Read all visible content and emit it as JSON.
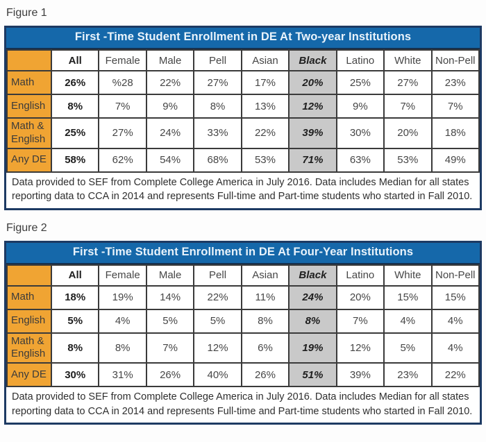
{
  "colors": {
    "title_bar_blue": "#1568aa",
    "title_text": "#e9f3fb",
    "row_label_orange": "#f0a433",
    "black_column_gray": "#c9c9c9",
    "outer_border_navy": "#1d3a63",
    "inner_border": "#3a3a3a"
  },
  "figures": [
    {
      "label": "Figure 1",
      "title": "First -Time Student Enrollment in DE At Two-year Institutions",
      "columns": [
        {
          "label": "",
          "style": "corner"
        },
        {
          "label": "All",
          "style": "bold"
        },
        {
          "label": "Female",
          "style": "plain"
        },
        {
          "label": "Male",
          "style": "plain"
        },
        {
          "label": "Pell",
          "style": "plain"
        },
        {
          "label": "Asian",
          "style": "plain"
        },
        {
          "label": "Black",
          "style": "highlight"
        },
        {
          "label": "Latino",
          "style": "plain"
        },
        {
          "label": "White",
          "style": "plain"
        },
        {
          "label": "Non-Pell",
          "style": "plain"
        }
      ],
      "rows": [
        {
          "label": "Math",
          "values": [
            "26%",
            "%28",
            "22%",
            "27%",
            "17%",
            "20%",
            "25%",
            "27%",
            "23%"
          ]
        },
        {
          "label": "English",
          "values": [
            "8%",
            "7%",
            "9%",
            "8%",
            "13%",
            "12%",
            "9%",
            "7%",
            "7%"
          ]
        },
        {
          "label": "Math & English",
          "values": [
            "25%",
            "27%",
            "24%",
            "33%",
            "22%",
            "39%",
            "30%",
            "20%",
            "18%"
          ]
        },
        {
          "label": "Any DE",
          "values": [
            "58%",
            "62%",
            "54%",
            "68%",
            "53%",
            "71%",
            "63%",
            "53%",
            "49%"
          ]
        }
      ],
      "note": "Data provided to SEF from Complete College America in July 2016. Data includes Median for all states reporting data to CCA in 2014 and represents Full-time and Part-time students who started in Fall 2010."
    },
    {
      "label": "Figure 2",
      "title": "First -Time Student Enrollment in DE At Four-Year Institutions",
      "columns": [
        {
          "label": "",
          "style": "corner"
        },
        {
          "label": "All",
          "style": "bold"
        },
        {
          "label": "Female",
          "style": "plain"
        },
        {
          "label": "Male",
          "style": "plain"
        },
        {
          "label": "Pell",
          "style": "plain"
        },
        {
          "label": "Asian",
          "style": "plain"
        },
        {
          "label": "Black",
          "style": "highlight"
        },
        {
          "label": "Latino",
          "style": "plain"
        },
        {
          "label": "White",
          "style": "plain"
        },
        {
          "label": "Non-Pell",
          "style": "plain"
        }
      ],
      "rows": [
        {
          "label": "Math",
          "values": [
            "18%",
            "19%",
            "14%",
            "22%",
            "11%",
            "24%",
            "20%",
            "15%",
            "15%"
          ]
        },
        {
          "label": "English",
          "values": [
            "5%",
            "4%",
            "5%",
            "5%",
            "8%",
            "8%",
            "7%",
            "4%",
            "4%"
          ]
        },
        {
          "label": "Math & English",
          "values": [
            "8%",
            "8%",
            "7%",
            "12%",
            "6%",
            "19%",
            "12%",
            "5%",
            "4%"
          ]
        },
        {
          "label": "Any DE",
          "values": [
            "30%",
            "31%",
            "26%",
            "40%",
            "26%",
            "51%",
            "39%",
            "23%",
            "22%"
          ]
        }
      ],
      "note": "Data provided to SEF from Complete College America in July 2016. Data includes Median for all states reporting data to CCA in 2014 and represents Full-time and Part-time students who started in Fall 2010."
    }
  ]
}
